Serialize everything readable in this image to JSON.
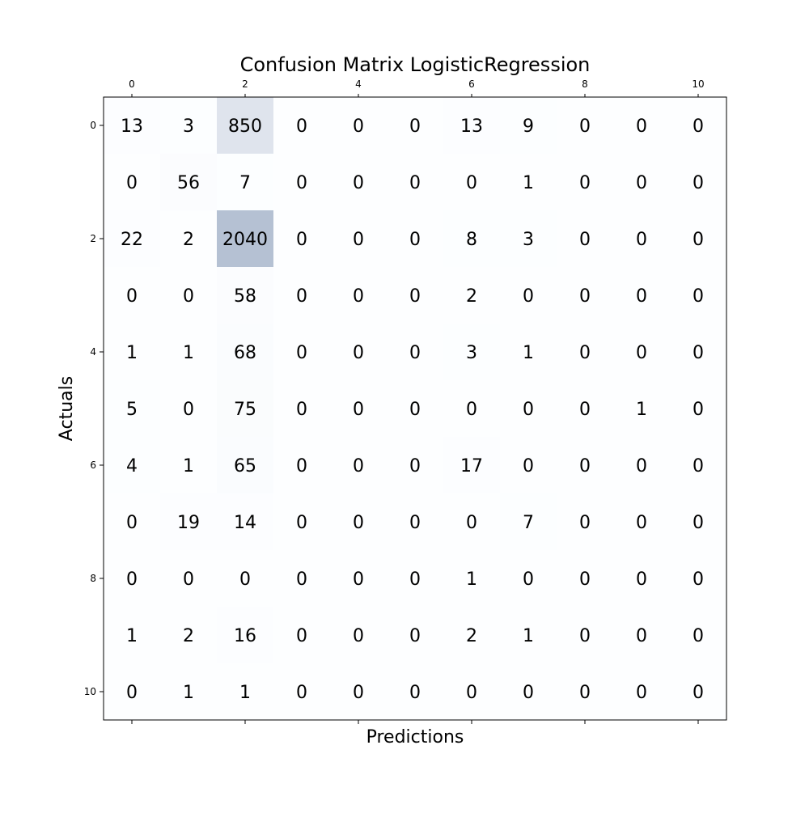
{
  "chart_data": {
    "type": "heatmap",
    "title": "Confusion Matrix LogisticRegression",
    "xlabel": "Predictions",
    "ylabel": "Actuals",
    "x_ticks": [
      "0",
      "2",
      "4",
      "6",
      "8",
      "10"
    ],
    "y_ticks": [
      "0",
      "2",
      "4",
      "6",
      "8",
      "10"
    ],
    "x_tick_positions": [
      0,
      2,
      4,
      6,
      8,
      10
    ],
    "y_tick_positions": [
      0,
      2,
      4,
      6,
      8,
      10
    ],
    "x_tick_side": "top",
    "rows": 11,
    "cols": 11,
    "matrix": [
      [
        13,
        3,
        850,
        0,
        0,
        0,
        13,
        9,
        0,
        0,
        0
      ],
      [
        0,
        56,
        7,
        0,
        0,
        0,
        0,
        1,
        0,
        0,
        0
      ],
      [
        22,
        2,
        2040,
        0,
        0,
        0,
        8,
        3,
        0,
        0,
        0
      ],
      [
        0,
        0,
        58,
        0,
        0,
        0,
        2,
        0,
        0,
        0,
        0
      ],
      [
        1,
        1,
        68,
        0,
        0,
        0,
        3,
        1,
        0,
        0,
        0
      ],
      [
        5,
        0,
        75,
        0,
        0,
        0,
        0,
        0,
        0,
        1,
        0
      ],
      [
        4,
        1,
        65,
        0,
        0,
        0,
        17,
        0,
        0,
        0,
        0
      ],
      [
        0,
        19,
        14,
        0,
        0,
        0,
        0,
        7,
        0,
        0,
        0
      ],
      [
        0,
        0,
        0,
        0,
        0,
        0,
        1,
        0,
        0,
        0,
        0
      ],
      [
        1,
        2,
        16,
        0,
        0,
        0,
        2,
        1,
        0,
        0,
        0
      ],
      [
        0,
        1,
        1,
        0,
        0,
        0,
        0,
        0,
        0,
        0,
        0
      ]
    ],
    "colormap": "Blues",
    "colormap_alpha": 0.3,
    "vmin": 0,
    "vmax": 2040,
    "grid": false,
    "colors": {
      "low": "#f7fbff",
      "high": "#08306b",
      "background": "#ffffff"
    }
  }
}
